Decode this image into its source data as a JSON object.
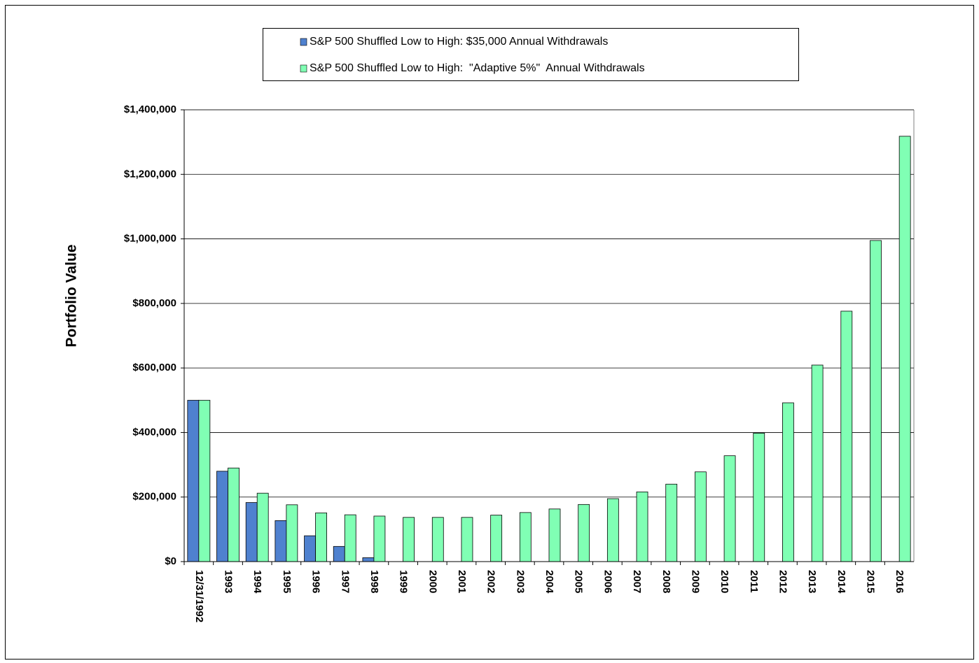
{
  "chart_data": {
    "type": "bar",
    "y_label": "Portfolio Value",
    "categories": [
      "12/31/1992",
      "1993",
      "1994",
      "1995",
      "1996",
      "1997",
      "1998",
      "1999",
      "2000",
      "2001",
      "2002",
      "2003",
      "2004",
      "2005",
      "2006",
      "2007",
      "2008",
      "2009",
      "2010",
      "2011",
      "2012",
      "2013",
      "2014",
      "2015",
      "2016"
    ],
    "series": [
      {
        "name": "S&P 500 Shuffled Low to High: $35,000 Annual Withdrawals",
        "color": "#4f81cf",
        "values": [
          500000,
          280000,
          183000,
          127000,
          80000,
          47000,
          12000,
          0,
          0,
          0,
          0,
          0,
          0,
          0,
          0,
          0,
          0,
          0,
          0,
          0,
          0,
          0,
          0,
          0,
          0
        ]
      },
      {
        "name": "S&P 500 Shuffled Low to High:  \"Adaptive 5%\"  Annual Withdrawals",
        "color": "#80ffb4",
        "values": [
          500000,
          290000,
          212000,
          176000,
          151000,
          145000,
          141000,
          137000,
          137000,
          137000,
          144000,
          152000,
          163000,
          177000,
          195000,
          216000,
          240000,
          278000,
          328000,
          398000,
          492000,
          609000,
          776000,
          995000,
          1318000
        ]
      }
    ],
    "ylim": [
      0,
      1400000
    ],
    "yticks": [
      {
        "value": 0,
        "label": "$0"
      },
      {
        "value": 200000,
        "label": "$200,000"
      },
      {
        "value": 400000,
        "label": "$400,000"
      },
      {
        "value": 600000,
        "label": "$600,000"
      },
      {
        "value": 800000,
        "label": "$800,000"
      },
      {
        "value": 1000000,
        "label": "$1,000,000"
      },
      {
        "value": 1200000,
        "label": "$1,200,000"
      },
      {
        "value": 1400000,
        "label": "$1,400,000"
      }
    ],
    "grid": true
  }
}
